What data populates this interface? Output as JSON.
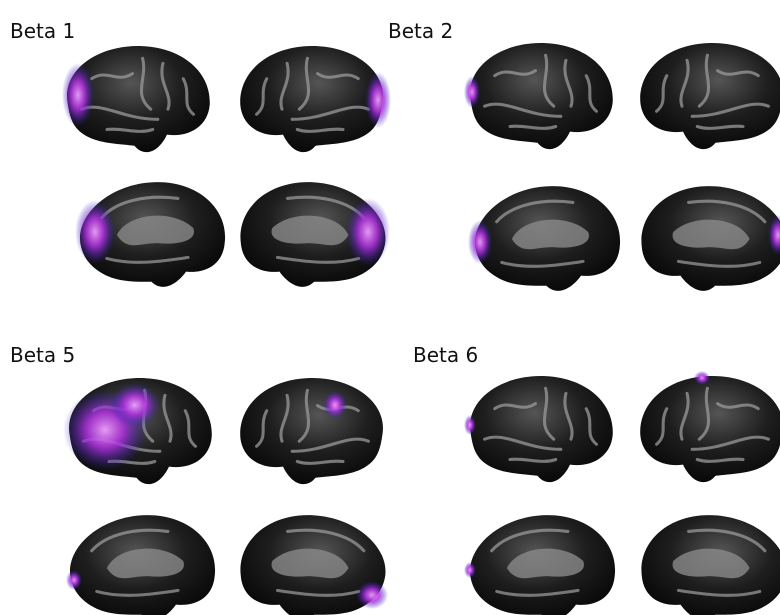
{
  "panels": [
    {
      "label": "Beta 1"
    },
    {
      "label": "Beta 2"
    },
    {
      "label": "Beta 5"
    },
    {
      "label": "Beta 6"
    }
  ]
}
